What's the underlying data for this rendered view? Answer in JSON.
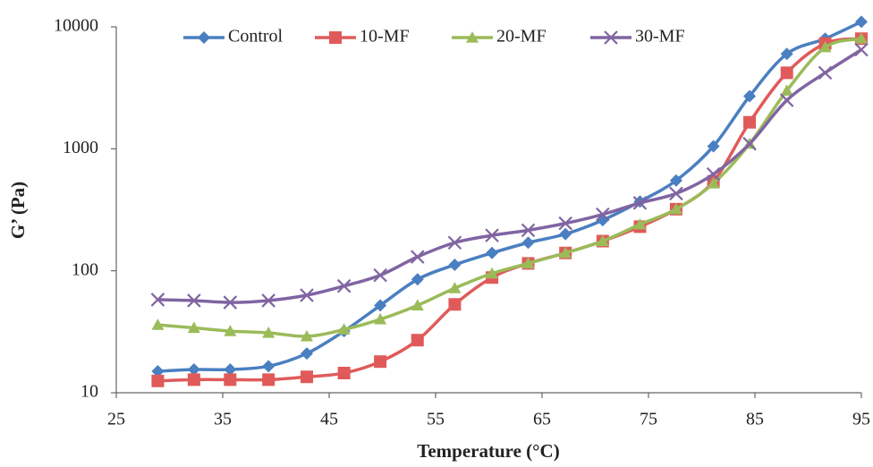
{
  "chart_data": {
    "type": "line",
    "x_label": "Temperature (°C)",
    "y_label": "G’ (Pa)",
    "y_scale": "log",
    "xlim": [
      25,
      95
    ],
    "xticks": [
      25,
      35,
      45,
      55,
      65,
      75,
      85,
      95
    ],
    "ylim": [
      10,
      10000
    ],
    "yticks": [
      10,
      100,
      1000,
      10000
    ],
    "grid": false,
    "legend": "top",
    "x": [
      28.9,
      32.3,
      35.7,
      39.3,
      42.9,
      46.4,
      49.8,
      53.3,
      56.8,
      60.3,
      63.7,
      67.2,
      70.7,
      74.2,
      77.6,
      81.1,
      84.5,
      88.0,
      91.6,
      95.0
    ],
    "series": [
      {
        "name": "Control",
        "color": "#4a7fc1",
        "marker": "diamond",
        "values": [
          15,
          15.5,
          15.5,
          16.5,
          21,
          32,
          52,
          85,
          112,
          140,
          170,
          200,
          260,
          370,
          550,
          1050,
          2700,
          6000,
          8000,
          11000
        ]
      },
      {
        "name": "10-MF",
        "color": "#e05a5a",
        "marker": "square",
        "values": [
          12.5,
          12.8,
          12.8,
          12.8,
          13.5,
          14.5,
          18,
          27,
          53,
          88,
          115,
          140,
          175,
          230,
          320,
          540,
          1650,
          4200,
          7300,
          8000
        ]
      },
      {
        "name": "20-MF",
        "color": "#9bbb59",
        "marker": "triangle",
        "values": [
          36,
          34,
          32,
          31,
          29,
          33,
          40,
          52,
          72,
          95,
          115,
          140,
          175,
          240,
          320,
          520,
          1100,
          3000,
          6800,
          8000
        ]
      },
      {
        "name": "30-MF",
        "color": "#8064a2",
        "marker": "x",
        "values": [
          58,
          57,
          55,
          57,
          63,
          75,
          92,
          130,
          170,
          195,
          215,
          245,
          290,
          360,
          430,
          620,
          1100,
          2500,
          4200,
          6500
        ]
      }
    ]
  }
}
